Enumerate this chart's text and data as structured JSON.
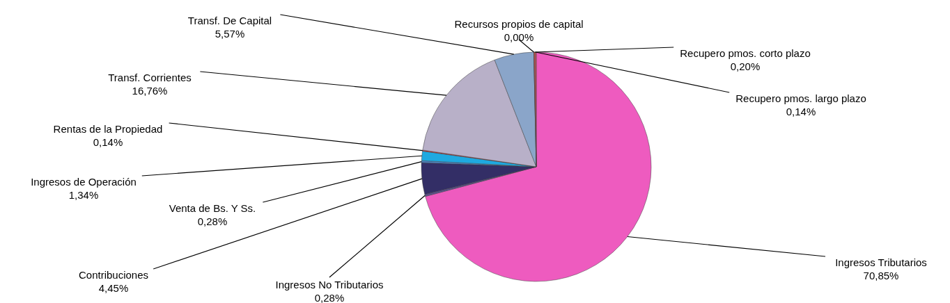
{
  "chart_data": {
    "type": "pie",
    "categories": [
      "Ingresos Tributarios",
      "Ingresos No Tributarios",
      "Contribuciones",
      "Venta de Bs. Y Ss.",
      "Ingresos de Operación",
      "Rentas de la Propiedad",
      "Transf. Corrientes",
      "Transf. De Capital",
      "Recursos propios de capital",
      "Recupero pmos. corto plazo",
      "Recupero pmos. largo plazo"
    ],
    "values": [
      70.85,
      0.28,
      4.45,
      0.28,
      1.34,
      0.14,
      16.76,
      5.57,
      0.0,
      0.2,
      0.14
    ],
    "value_labels": [
      "70,85%",
      "0,28%",
      "4,45%",
      "0,28%",
      "1,34%",
      "0,14%",
      "16,76%",
      "5,57%",
      "0,00%",
      "0,20%",
      "0,14%"
    ],
    "colors": [
      "#ee5bbf",
      "#5a4f8f",
      "#332e66",
      "#4a7fc0",
      "#1fa9e0",
      "#e8221f",
      "#b8b0c8",
      "#8aa5c9",
      "#7f7f7f",
      "#c0504d",
      "#e06060"
    ]
  }
}
